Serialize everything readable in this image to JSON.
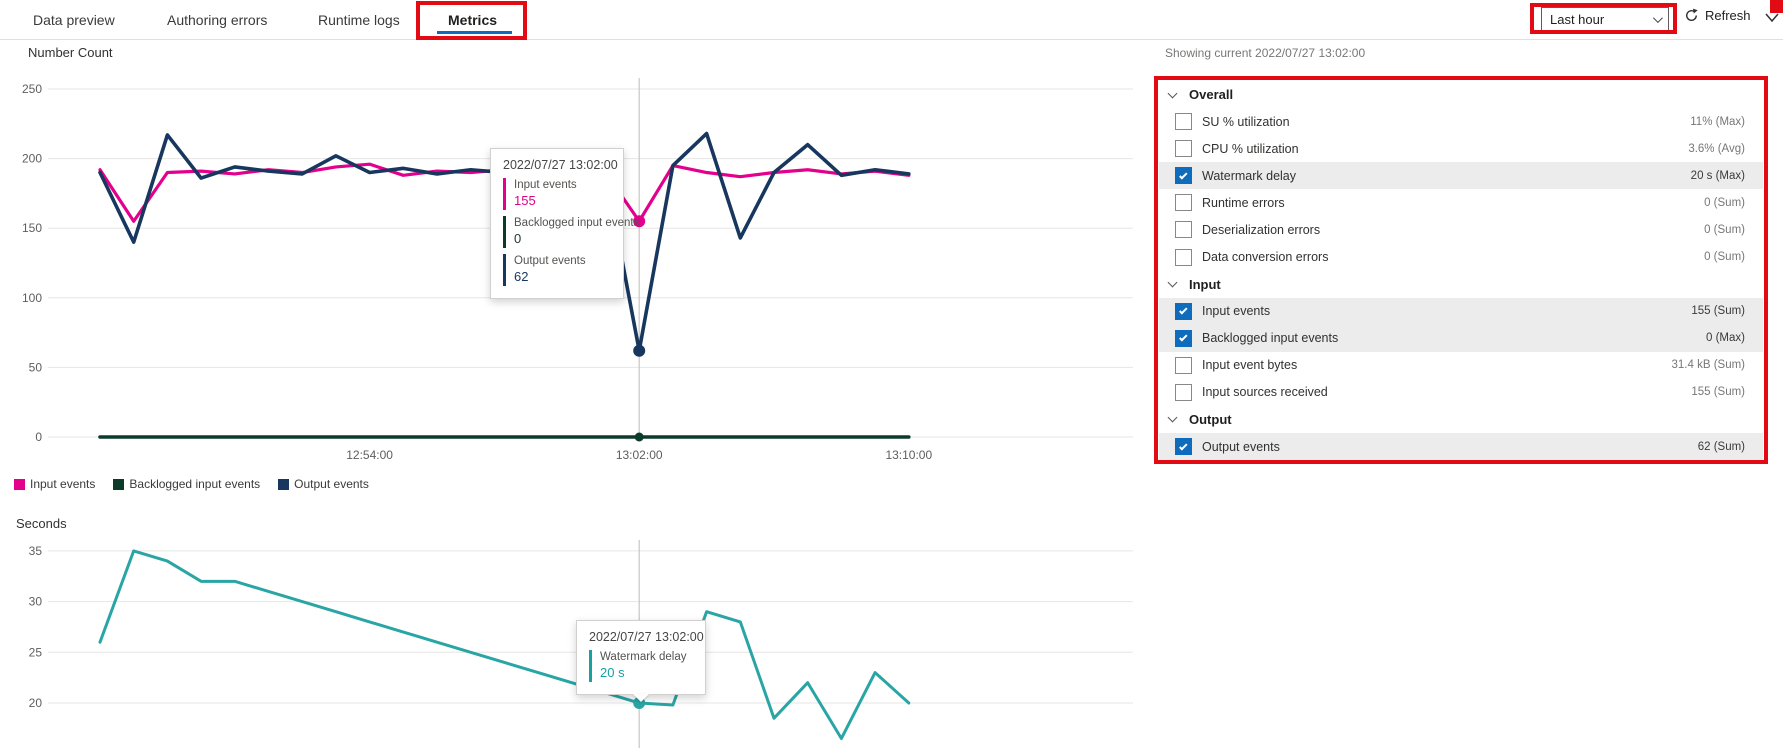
{
  "tabs": {
    "items": [
      {
        "label": "Data preview",
        "active": false
      },
      {
        "label": "Authoring errors",
        "active": false
      },
      {
        "label": "Runtime logs",
        "active": false
      },
      {
        "label": "Metrics",
        "active": true
      }
    ]
  },
  "toolbar": {
    "time_range_value": "Last hour",
    "refresh_label": "Refresh"
  },
  "panel": {
    "showing_current": "Showing current 2022/07/27 13:02:00",
    "sections": [
      {
        "label": "Overall",
        "rows": [
          {
            "label": "SU % utilization",
            "value": "11% (Max)",
            "checked": false
          },
          {
            "label": "CPU % utilization",
            "value": "3.6% (Avg)",
            "checked": false
          },
          {
            "label": "Watermark delay",
            "value": "20 s (Max)",
            "checked": true
          },
          {
            "label": "Runtime errors",
            "value": "0 (Sum)",
            "checked": false
          },
          {
            "label": "Deserialization errors",
            "value": "0 (Sum)",
            "checked": false
          },
          {
            "label": "Data conversion errors",
            "value": "0 (Sum)",
            "checked": false
          }
        ]
      },
      {
        "label": "Input",
        "rows": [
          {
            "label": "Input events",
            "value": "155 (Sum)",
            "checked": true
          },
          {
            "label": "Backlogged input events",
            "value": "0 (Max)",
            "checked": true
          },
          {
            "label": "Input event bytes",
            "value": "31.4 kB (Sum)",
            "checked": false
          },
          {
            "label": "Input sources received",
            "value": "155 (Sum)",
            "checked": false
          }
        ]
      },
      {
        "label": "Output",
        "rows": [
          {
            "label": "Output events",
            "value": "62 (Sum)",
            "checked": true
          }
        ]
      }
    ]
  },
  "tooltip_number_count": {
    "title": "2022/07/27 13:02:00",
    "rows": [
      {
        "label": "Input events",
        "value": "155",
        "color": "#e3008c"
      },
      {
        "label": "Backlogged input events",
        "value": "0",
        "color": "#0d3b2a"
      },
      {
        "label": "Output events",
        "value": "62",
        "color": "#17375e"
      }
    ]
  },
  "tooltip_seconds": {
    "title": "2022/07/27 13:02:00",
    "rows": [
      {
        "label": "Watermark delay",
        "value": "20 s",
        "color": "#1ba0a0"
      }
    ]
  },
  "chart_data": [
    {
      "type": "line",
      "axis_title": "Number Count",
      "ylim": [
        0,
        250
      ],
      "y_ticks": [
        0,
        50,
        100,
        150,
        200,
        250
      ],
      "x_ticks": [
        {
          "label": "12:54:00",
          "index": 8
        },
        {
          "label": "13:02:00",
          "index": 16
        },
        {
          "label": "13:10:00",
          "index": 24
        }
      ],
      "marker_index": 16,
      "categories": [
        "12:46:00",
        "12:47:00",
        "12:48:00",
        "12:49:00",
        "12:50:00",
        "12:51:00",
        "12:52:00",
        "12:53:00",
        "12:54:00",
        "12:55:00",
        "12:56:00",
        "12:57:00",
        "12:58:00",
        "12:59:00",
        "13:00:00",
        "13:01:00",
        "13:02:00",
        "13:03:00",
        "13:04:00",
        "13:05:00",
        "13:06:00",
        "13:07:00",
        "13:08:00",
        "13:09:00",
        "13:10:00"
      ],
      "series": [
        {
          "name": "Input events",
          "color": "#e3008c",
          "values": [
            192,
            155,
            190,
            191,
            189,
            192,
            190,
            194,
            196,
            188,
            191,
            190,
            192,
            190,
            189,
            190,
            155,
            195,
            190,
            187,
            190,
            192,
            189,
            191,
            188
          ]
        },
        {
          "name": "Backlogged input events",
          "color": "#0d3b2a",
          "values": [
            0,
            0,
            0,
            0,
            0,
            0,
            0,
            0,
            0,
            0,
            0,
            0,
            0,
            0,
            0,
            0,
            0,
            0,
            0,
            0,
            0,
            0,
            0,
            0,
            0
          ]
        },
        {
          "name": "Output events",
          "color": "#17375e",
          "values": [
            190,
            140,
            217,
            186,
            194,
            191,
            189,
            202,
            190,
            193,
            189,
            192,
            190,
            191,
            188,
            190,
            62,
            195,
            218,
            143,
            190,
            210,
            188,
            192,
            189
          ]
        }
      ]
    },
    {
      "type": "line",
      "axis_title": "Seconds",
      "ylim": [
        15,
        35
      ],
      "y_ticks": [
        20,
        25,
        30,
        35
      ],
      "x_ticks": [],
      "marker_index": 16,
      "categories": [
        "12:46:00",
        "12:47:00",
        "12:48:00",
        "12:49:00",
        "12:50:00",
        "12:51:00",
        "12:52:00",
        "12:53:00",
        "12:54:00",
        "12:55:00",
        "12:56:00",
        "12:57:00",
        "12:58:00",
        "12:59:00",
        "13:00:00",
        "13:01:00",
        "13:02:00",
        "13:03:00",
        "13:04:00",
        "13:05:00",
        "13:06:00",
        "13:07:00",
        "13:08:00",
        "13:09:00",
        "13:10:00"
      ],
      "series": [
        {
          "name": "Watermark delay",
          "color": "#29a5a5",
          "values": [
            26,
            35,
            34,
            32,
            32,
            31,
            30,
            29,
            28,
            27,
            26,
            25,
            24,
            23,
            22,
            21,
            20,
            19.8,
            29,
            28,
            18.5,
            22,
            16.5,
            23,
            20
          ]
        }
      ]
    }
  ],
  "colors": {
    "accent_blue": "#0f6cbd",
    "annotation_red": "#e30b13",
    "highlight_row": "#ececec",
    "input_events": "#e3008c",
    "backlogged_input_events": "#0d3b2a",
    "output_events": "#17375e",
    "watermark_delay": "#29a5a5"
  }
}
